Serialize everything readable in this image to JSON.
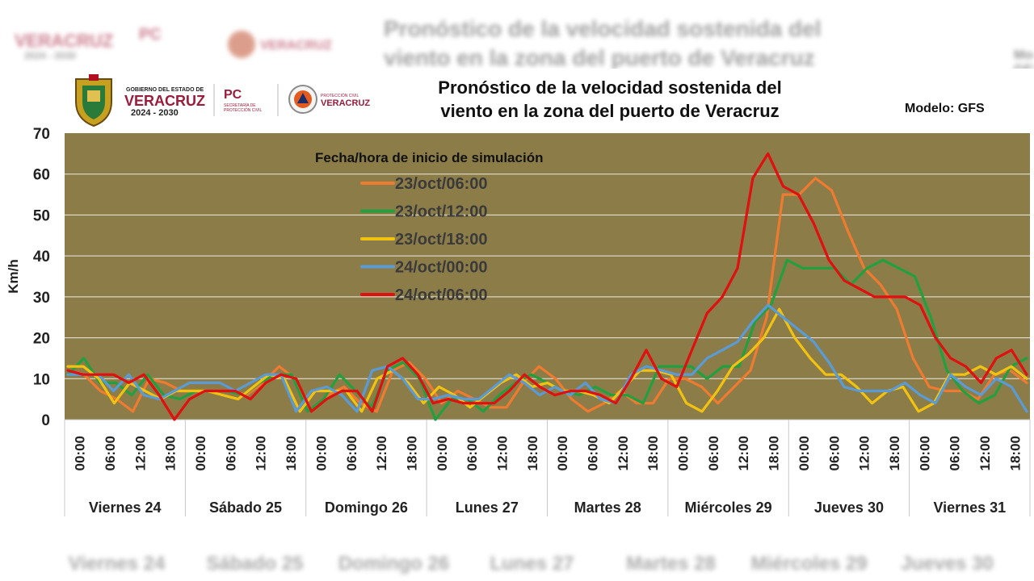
{
  "header": {
    "title_line1": "Pronóstico de la velocidad sostenida del",
    "title_line2": "viento en la zona del puerto de Veracruz",
    "model_label": "Modelo: GFS",
    "logo_gobierno": "GOBIERNO DEL ESTADO DE",
    "logo_state": "VERACRUZ",
    "logo_years": "2024 - 2030",
    "logo_pc": "PC",
    "logo_pc_sub1": "SECRETARÍA DE",
    "logo_pc_sub2": "PROTECCIÓN CIVIL",
    "logo_proteccion": "PROTECCIÓN CIVIL",
    "logo_proteccion_state": "VERACRUZ"
  },
  "chart_data": {
    "type": "line",
    "title": "Pronóstico de la velocidad sostenida del viento en la zona del puerto de Veracruz",
    "ylabel": "Km/h",
    "ylim": [
      0,
      70
    ],
    "yticks": [
      0,
      10,
      20,
      30,
      40,
      50,
      60,
      70
    ],
    "legend_title": "Fecha/hora de inicio de simulación",
    "legend_position": "top-left",
    "grid": true,
    "plot_background": "#8c7c48",
    "x_ticks": [
      "00:00",
      "06:00",
      "12:00",
      "18:00"
    ],
    "days": [
      "Viernes 24",
      "Sábado 25",
      "Domingo 26",
      "Lunes 27",
      "Martes 28",
      "Miércoles 29",
      "Jueves 30",
      "Viernes 31"
    ],
    "series": [
      {
        "name": "23/oct/06:00",
        "color": "#ee7b30",
        "values": [
          12,
          11,
          7,
          5,
          2,
          10,
          9,
          7,
          7,
          7,
          7,
          6,
          9,
          13,
          10,
          2,
          6,
          8,
          4,
          2,
          12,
          14,
          10,
          4,
          7,
          5,
          3,
          3,
          9,
          13,
          10,
          5,
          2,
          4,
          7,
          4,
          4,
          10,
          10,
          8,
          4,
          8,
          12,
          25,
          55,
          55,
          59,
          56,
          46,
          37,
          33,
          27,
          15,
          8,
          7,
          7,
          5,
          11,
          12,
          9
        ]
      },
      {
        "name": "23/oct/12:00",
        "color": "#22a040",
        "values": [
          11,
          15,
          9,
          9,
          6,
          11,
          6,
          5,
          7,
          7,
          7,
          6,
          9,
          11,
          11,
          2,
          5,
          11,
          7,
          3,
          12,
          14,
          10,
          0,
          5,
          5,
          2,
          6,
          9,
          11,
          9,
          7,
          6,
          8,
          6,
          6,
          4,
          13,
          13,
          13,
          10,
          13,
          13,
          24,
          28,
          39,
          37,
          37,
          37,
          33,
          37,
          39,
          37,
          35,
          25,
          12,
          7,
          4,
          6,
          13,
          15
        ]
      },
      {
        "name": "23/oct/18:00",
        "color": "#f2c210",
        "values": [
          13,
          13,
          10,
          4,
          9,
          7,
          5,
          7,
          7,
          7,
          6,
          5,
          8,
          11,
          10,
          2,
          7,
          7,
          7,
          2,
          10,
          12,
          9,
          4,
          8,
          6,
          3,
          6,
          9,
          11,
          8,
          9,
          7,
          7,
          6,
          4,
          8,
          12,
          12,
          11,
          4,
          2,
          7,
          13,
          16,
          20,
          27,
          20,
          15,
          11,
          11,
          8,
          4,
          7,
          8,
          2,
          4,
          11,
          11,
          13,
          11,
          13,
          10
        ]
      },
      {
        "name": "24/oct/00:00",
        "color": "#5b9bd5",
        "values": [
          11,
          11,
          11,
          7,
          11,
          6,
          5,
          7,
          9,
          9,
          9,
          7,
          9,
          11,
          11,
          2,
          7,
          8,
          6,
          2,
          12,
          13,
          10,
          5,
          5,
          6,
          5,
          5,
          8,
          11,
          9,
          6,
          8,
          6,
          9,
          5,
          4,
          11,
          13,
          12,
          11,
          11,
          15,
          17,
          19,
          24,
          28,
          25,
          22,
          19,
          14,
          8,
          7,
          7,
          7,
          9,
          6,
          4,
          11,
          8,
          6,
          10,
          8,
          2
        ]
      },
      {
        "name": "24/oct/06:00",
        "color": "#e01010",
        "values": [
          12,
          11,
          11,
          11,
          9,
          11,
          6,
          0,
          5,
          7,
          7,
          7,
          5,
          9,
          11,
          10,
          2,
          5,
          7,
          7,
          2,
          13,
          15,
          11,
          4,
          5,
          4,
          4,
          4,
          7,
          11,
          8,
          6,
          7,
          7,
          6,
          4,
          10,
          17,
          10,
          8,
          17,
          26,
          30,
          37,
          59,
          65,
          57,
          55,
          48,
          39,
          34,
          32,
          30,
          30,
          30,
          28,
          20,
          15,
          13,
          9,
          15,
          17,
          11
        ]
      }
    ]
  }
}
